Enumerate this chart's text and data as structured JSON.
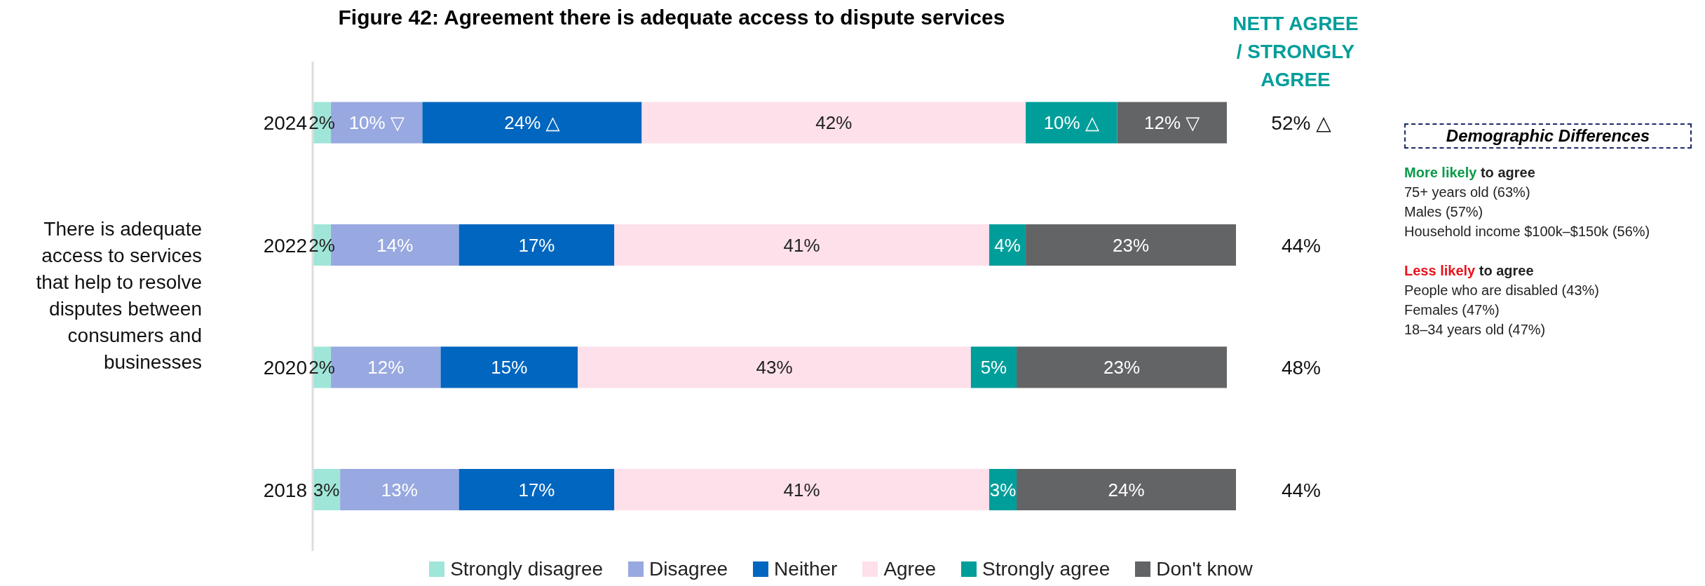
{
  "chart_data": {
    "type": "bar",
    "orientation": "horizontal",
    "stacked": true,
    "title": "Figure 42: Agreement there is adequate access to dispute services",
    "ylabel": "There is adequate access to services that help to resolve disputes between consumers and businesses",
    "categories": [
      "2024",
      "2022",
      "2020",
      "2018"
    ],
    "series": [
      {
        "name": "Strongly disagree",
        "color": "#a0e6d8",
        "values": [
          2,
          2,
          2,
          3
        ],
        "value_labels": [
          "2%",
          "2%",
          "2%",
          "3%"
        ]
      },
      {
        "name": "Disagree",
        "color": "#98a8e0",
        "values": [
          10,
          14,
          12,
          13
        ],
        "value_labels": [
          "10% ▽",
          "14%",
          "12%",
          "13%"
        ]
      },
      {
        "name": "Neither",
        "color": "#0066bf",
        "values": [
          24,
          17,
          15,
          17
        ],
        "value_labels": [
          "24% △",
          "17%",
          "15%",
          "17%"
        ]
      },
      {
        "name": "Agree",
        "color": "#fde0ea",
        "values": [
          42,
          41,
          43,
          41
        ],
        "value_labels": [
          "42%",
          "41%",
          "43%",
          "41%"
        ]
      },
      {
        "name": "Strongly agree",
        "color": "#009e9a",
        "values": [
          10,
          4,
          5,
          3
        ],
        "value_labels": [
          "10% △",
          "4%",
          "5%",
          "3%"
        ]
      },
      {
        "name": "Don't know",
        "color": "#636466",
        "values": [
          12,
          23,
          23,
          24
        ],
        "value_labels": [
          "12% ▽",
          "23%",
          "23%",
          "24%"
        ]
      }
    ],
    "xlim": [
      0,
      101
    ],
    "tick_labels": "y",
    "grid": false,
    "legend": "bottom",
    "annotations": [
      "NETT AGREE / STRONGLY AGREE",
      "52% △",
      "44%",
      "48%",
      "44%",
      "Demographic Differences",
      "More likely to agree",
      "75+ years old (63%)",
      "Males (57%)",
      "Household income $100k–$150k (56%)",
      "Less likely to agree",
      "People who are disabled (43%)",
      "Females (47%)",
      "18–34 years old (47%)"
    ]
  }
}
